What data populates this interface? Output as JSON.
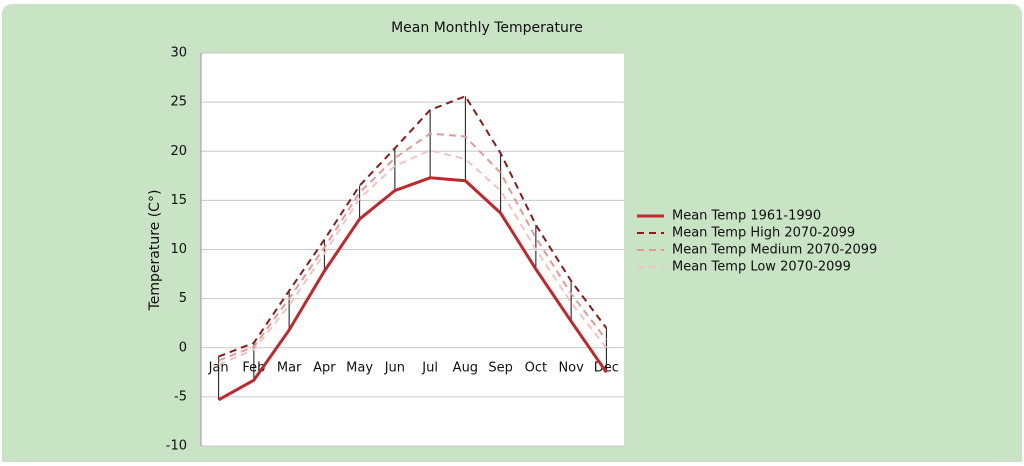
{
  "chart_data": {
    "type": "line",
    "title": "Mean Monthly Temperature",
    "y_label": "Temperature (C°)",
    "categories": [
      "Jan",
      "Feb",
      "Mar",
      "Apr",
      "May",
      "Jun",
      "Jul",
      "Aug",
      "Sep",
      "Oct",
      "Nov",
      "Dec"
    ],
    "ylim": [
      -10,
      30
    ],
    "yticks": [
      -10,
      -5,
      0,
      5,
      10,
      15,
      20,
      25,
      30
    ],
    "grid": true,
    "legend": "right",
    "series": [
      {
        "name": "Mean Temp 1961-1990",
        "color": "#c0282d",
        "dash": "solid",
        "values": [
          -5.3,
          -3.3,
          1.8,
          7.8,
          13.1,
          16.0,
          17.3,
          17.0,
          13.7,
          8.0,
          2.7,
          -2.5
        ]
      },
      {
        "name": "Mean Temp High 2070-2099",
        "color": "#8b1a1a",
        "dash": "dashed",
        "values": [
          -0.9,
          0.5,
          5.8,
          11.0,
          16.5,
          20.3,
          24.2,
          25.6,
          19.8,
          12.5,
          6.8,
          2.0
        ]
      },
      {
        "name": "Mean Temp Medium 2070-2099",
        "color": "#e39a9a",
        "dash": "dashed",
        "values": [
          -1.3,
          0.1,
          5.0,
          10.2,
          15.8,
          19.3,
          21.8,
          21.5,
          17.8,
          11.2,
          5.5,
          0.8
        ]
      },
      {
        "name": "Mean Temp Low 2070-2099",
        "color": "#f2c4c4",
        "dash": "dashed",
        "values": [
          -1.7,
          -0.2,
          4.3,
          9.6,
          15.2,
          18.5,
          20.1,
          19.2,
          16.0,
          10.0,
          4.6,
          0.0
        ]
      }
    ]
  }
}
